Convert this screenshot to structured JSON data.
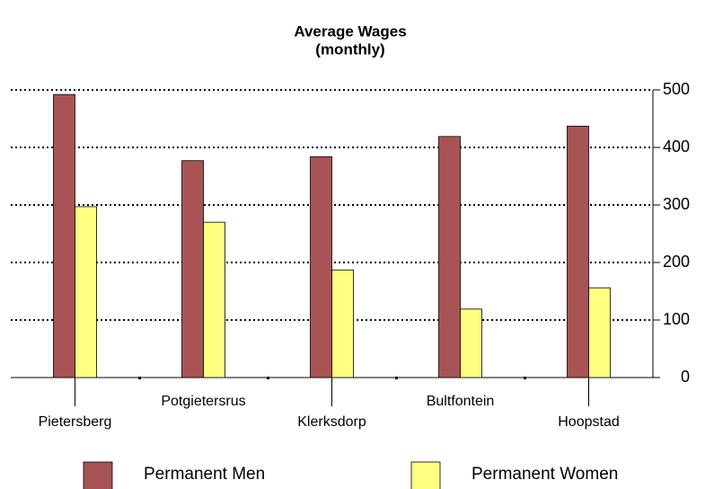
{
  "chart_data": {
    "type": "bar",
    "title": "Average Wages",
    "subtitle": "(monthly)",
    "categories": [
      "Pietersberg",
      "Potgietersrus",
      "Klerksdorp",
      "Bultfontein",
      "Hoopstad"
    ],
    "series": [
      {
        "name": "Permanent Men",
        "color": "#a85454",
        "values": [
          492,
          377,
          384,
          419,
          437
        ]
      },
      {
        "name": "Permanent Women",
        "color": "#ffff80",
        "values": [
          297,
          270,
          187,
          119,
          156
        ]
      }
    ],
    "ylim": [
      0,
      500
    ],
    "yticks": [
      0,
      100,
      200,
      300,
      400,
      500
    ],
    "grid": true,
    "y_axis_side": "right",
    "legend": "bottom"
  }
}
